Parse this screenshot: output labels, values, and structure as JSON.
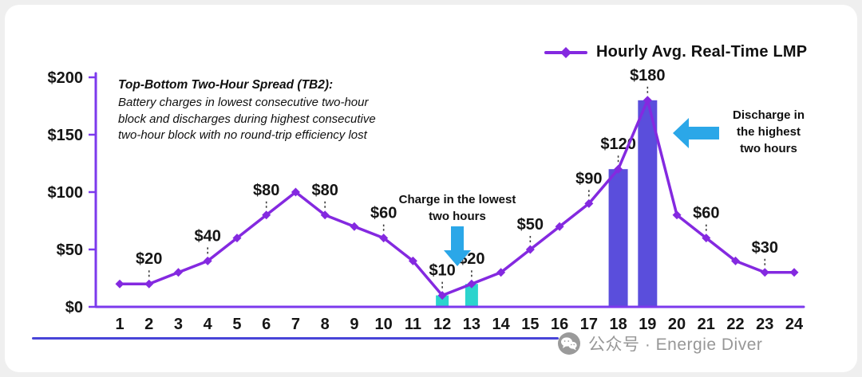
{
  "legend": {
    "label": "Hourly Avg. Real-Time LMP"
  },
  "notes": {
    "tb2_title": "Top-Bottom Two-Hour Spread (TB2):",
    "tb2_body": "Battery charges in lowest consecutive two-hour\nblock and discharges during highest consecutive\ntwo-hour block with no round-trip efficiency lost",
    "charge_label": "Charge in the lowest\ntwo hours",
    "discharge_label": "Discharge in\nthe highest\ntwo hours"
  },
  "watermark": {
    "text": "公众号 · Energie Diver",
    "icon": "wechat-icon"
  },
  "chart_data": {
    "type": "line",
    "title": "",
    "xlabel": "",
    "ylabel": "",
    "grid": false,
    "legend_position": "top-right",
    "x": [
      1,
      2,
      3,
      4,
      5,
      6,
      7,
      8,
      9,
      10,
      11,
      12,
      13,
      14,
      15,
      16,
      17,
      18,
      19,
      20,
      21,
      22,
      23,
      24
    ],
    "series": [
      {
        "name": "Hourly Avg. Real-Time LMP",
        "values": [
          20,
          20,
          30,
          40,
          60,
          80,
          100,
          80,
          70,
          60,
          40,
          10,
          20,
          30,
          50,
          70,
          90,
          120,
          180,
          80,
          60,
          40,
          30,
          30
        ]
      }
    ],
    "point_labels": {
      "2": "$20",
      "4": "$40",
      "6": "$80",
      "8": "$80",
      "10": "$60",
      "12": "$10",
      "13": "$20",
      "15": "$50",
      "17": "$90",
      "18": "$120",
      "19": "$180",
      "21": "$60",
      "23": "$30"
    },
    "bars": [
      {
        "hour": 12,
        "value": 10,
        "role": "charge"
      },
      {
        "hour": 13,
        "value": 20,
        "role": "charge"
      },
      {
        "hour": 18,
        "value": 120,
        "role": "discharge"
      },
      {
        "hour": 19,
        "value": 180,
        "role": "discharge"
      }
    ],
    "ylim": [
      0,
      200
    ],
    "yticks": {
      "values": [
        0,
        50,
        100,
        150,
        200
      ],
      "labels": [
        "$0",
        "$50",
        "$100",
        "$150",
        "$200"
      ]
    },
    "colors": {
      "line": "#8429E0",
      "axis": "#7C3AED",
      "charge_bar": "#2BD4CD",
      "discharge_bar": "#5A4EDC",
      "arrow": "#2BA7E8",
      "divider": "#4845D8",
      "label_leader": "#3c3c3c"
    }
  }
}
